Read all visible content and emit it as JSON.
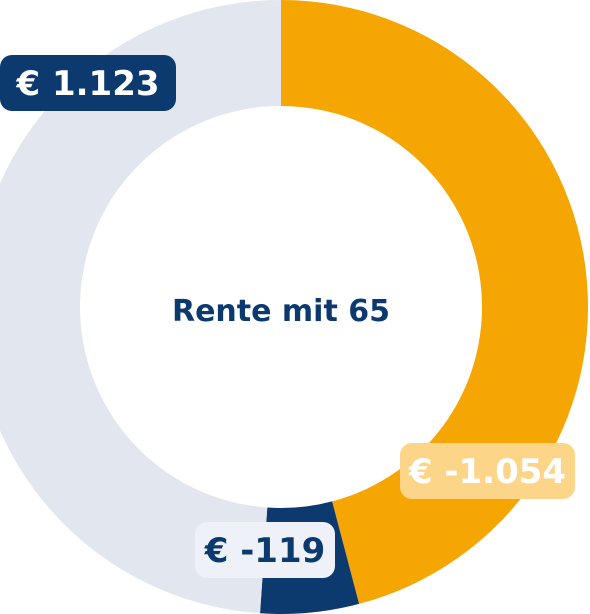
{
  "chart_data": {
    "type": "pie",
    "title": "Rente mit 65",
    "slices": [
      {
        "label": "€ -1.054",
        "value": 1054,
        "color": "#F5A603",
        "label_bg": "#FCD588",
        "label_fg": "#FFFFFF"
      },
      {
        "label": "€ -119",
        "value": 119,
        "color": "#0C3A6E",
        "label_bg": "#EEF1F7",
        "label_fg": "#0C3A6E"
      },
      {
        "label": "€ 1.123",
        "value": 1123,
        "color": "#E2E6EF",
        "label_bg": "#0C3A6E",
        "label_fg": "#FFFFFF"
      }
    ],
    "center_color": "#0C3A6E",
    "legend": "none"
  }
}
